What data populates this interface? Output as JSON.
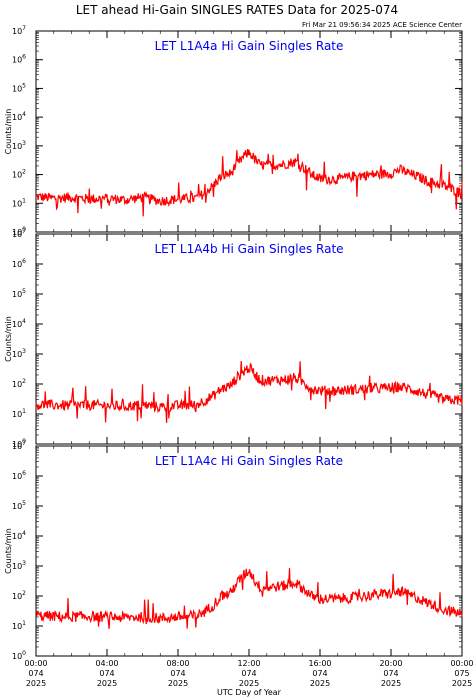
{
  "header": {
    "title": "LET ahead Hi-Gain SINGLES RATES Data for 2025-074",
    "timestamp": "Fri Mar 21 09:56:34 2025 ACE Science Center"
  },
  "axes": {
    "ylabel": "Counts/min",
    "xlabel": "UTC Day of Year",
    "y_tick_base": "10",
    "y_tick_exponents": [
      "0",
      "1",
      "2",
      "3",
      "4",
      "5",
      "6",
      "7"
    ],
    "x_ticks": [
      {
        "time": "00:00",
        "day": "074",
        "year": "2025"
      },
      {
        "time": "04:00",
        "day": "074",
        "year": "2025"
      },
      {
        "time": "08:00",
        "day": "074",
        "year": "2025"
      },
      {
        "time": "12:00",
        "day": "074",
        "year": "2025"
      },
      {
        "time": "16:00",
        "day": "074",
        "year": "2025"
      },
      {
        "time": "20:00",
        "day": "074",
        "year": "2025"
      },
      {
        "time": "00:00",
        "day": "075",
        "year": "2025"
      }
    ]
  },
  "colors": {
    "series": "#ff0000",
    "panel_title": "#0000ee",
    "axes": "#000000"
  },
  "chart_data": [
    {
      "type": "line",
      "title": "LET L1A4a Hi Gain Singles Rate",
      "xlabel": "UTC Day of Year",
      "ylabel": "Counts/min",
      "y_scale": "log",
      "ylim": [
        1,
        10000000
      ],
      "xlim_hours": [
        0,
        24
      ],
      "series": [
        {
          "x_hours": [
            0,
            1,
            2,
            3,
            4,
            5,
            6,
            7,
            8,
            9,
            9.5,
            10,
            10.5,
            11,
            11.5,
            12,
            12.3,
            12.6,
            13,
            14,
            14.6,
            15,
            15.5,
            16,
            17,
            18,
            19,
            20,
            20.5,
            21,
            22,
            23,
            24
          ],
          "values": [
            17,
            15,
            16,
            14,
            15,
            13,
            16,
            12,
            14,
            15,
            22,
            40,
            90,
            110,
            300,
            600,
            350,
            220,
            200,
            230,
            280,
            190,
            100,
            70,
            70,
            90,
            100,
            110,
            150,
            110,
            60,
            40,
            20
          ]
        }
      ]
    },
    {
      "type": "line",
      "title": "LET L1A4b Hi Gain Singles Rate",
      "xlabel": "UTC Day of Year",
      "ylabel": "Counts/min",
      "y_scale": "log",
      "ylim": [
        1,
        10000000
      ],
      "xlim_hours": [
        0,
        24
      ],
      "series": [
        {
          "x_hours": [
            0,
            1,
            2,
            3,
            4,
            5,
            6,
            7,
            8,
            9,
            9.5,
            10,
            10.5,
            11,
            11.5,
            12,
            12.3,
            12.6,
            13,
            14,
            14.6,
            15,
            15.5,
            16,
            17,
            18,
            19,
            20,
            20.5,
            21,
            22,
            23,
            24
          ],
          "values": [
            20,
            20,
            19,
            20,
            19,
            18,
            20,
            17,
            19,
            20,
            28,
            40,
            70,
            90,
            200,
            350,
            220,
            140,
            130,
            140,
            160,
            120,
            70,
            60,
            60,
            65,
            70,
            75,
            80,
            70,
            45,
            30,
            28
          ]
        }
      ]
    },
    {
      "type": "line",
      "title": "LET L1A4c Hi Gain Singles Rate",
      "xlabel": "UTC Day of Year",
      "ylabel": "Counts/min",
      "y_scale": "log",
      "ylim": [
        1,
        10000000
      ],
      "xlim_hours": [
        0,
        24
      ],
      "series": [
        {
          "x_hours": [
            0,
            1,
            2,
            3,
            4,
            5,
            6,
            7,
            8,
            9,
            9.5,
            10,
            10.5,
            11,
            11.5,
            12,
            12.3,
            12.6,
            13,
            14,
            14.6,
            15,
            15.5,
            16,
            17,
            18,
            19,
            20,
            20.5,
            21,
            22,
            23,
            24
          ],
          "values": [
            22,
            21,
            20,
            21,
            20,
            19,
            20,
            18,
            20,
            22,
            30,
            50,
            100,
            130,
            350,
            700,
            330,
            200,
            190,
            220,
            280,
            180,
            100,
            80,
            80,
            90,
            110,
            120,
            140,
            110,
            60,
            35,
            25
          ]
        }
      ]
    }
  ]
}
